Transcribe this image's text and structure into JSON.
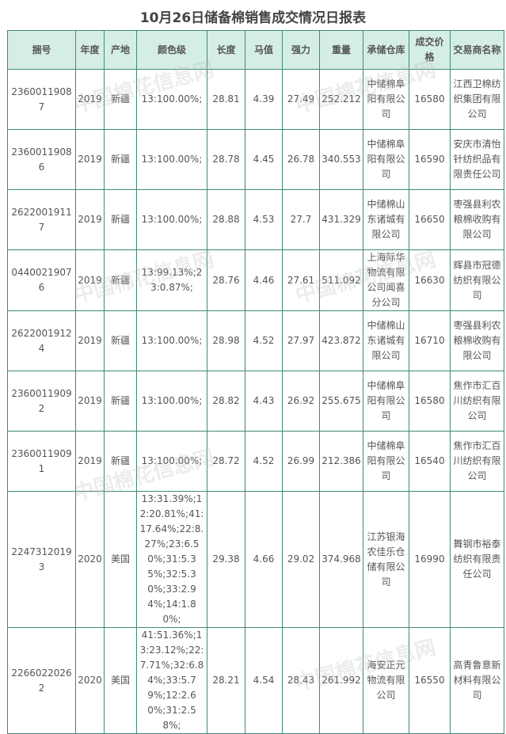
{
  "title": "10月26日储备棉销售成交情况日报表",
  "headers": [
    "捆号",
    "年度",
    "产地",
    "颜色级",
    "长度",
    "马值",
    "强力",
    "重量",
    "承储仓库",
    "成交价格",
    "交易商名称"
  ],
  "rows": [
    [
      "23600119087",
      "2019",
      "新疆",
      "13:100.00%;",
      "28.81",
      "4.39",
      "27.49",
      "252.212",
      "中储棉阜阳有限公司",
      "16580",
      "江西卫棉纺织集团有限公司"
    ],
    [
      "23600119086",
      "2019",
      "新疆",
      "13:100.00%;",
      "28.78",
      "4.45",
      "26.78",
      "340.553",
      "中储棉阜阳有限公司",
      "16590",
      "安庆市清怡针纺织品有限责任公司"
    ],
    [
      "26220019117",
      "2019",
      "新疆",
      "13:100.00%;",
      "28.88",
      "4.53",
      "27.7",
      "431.329",
      "中储棉山东诸城有限公司",
      "16650",
      "枣强县利农粮棉收购有限公司"
    ],
    [
      "04400219076",
      "2019",
      "新疆",
      "13:99.13%;23:0.87%;",
      "28.76",
      "4.46",
      "27.61",
      "511.092",
      "上海际华物流有限公司闻喜分公司",
      "16630",
      "辉县市冠德纺织有限公司"
    ],
    [
      "26220019124",
      "2019",
      "新疆",
      "13:100.00%;",
      "28.98",
      "4.52",
      "27.97",
      "423.872",
      "中储棉山东诸城有限公司",
      "16710",
      "枣强县利农粮棉收购有限公司"
    ],
    [
      "23600119092",
      "2019",
      "新疆",
      "13:100.00%;",
      "28.82",
      "4.43",
      "26.92",
      "255.675",
      "中储棉阜阳有限公司",
      "16580",
      "焦作市汇百川纺织有限公司"
    ],
    [
      "23600119091",
      "2019",
      "新疆",
      "13:100.00%;",
      "28.72",
      "4.52",
      "26.99",
      "212.386",
      "中储棉阜阳有限公司",
      "16540",
      "焦作市汇百川纺织有限公司"
    ],
    [
      "22473120193",
      "2020",
      "美国",
      "13:31.39%;12:20.81%;41:17.64%;22:8.27%;23:6.50%;31:5.35%;32:5.30%;33:2.94%;14:1.80%;",
      "29.38",
      "4.66",
      "29.02",
      "374.968",
      "江苏银海农佳乐仓储有限公司",
      "16990",
      "舞钢市裕泰纺织有限责任公司"
    ],
    [
      "22660220262",
      "2020",
      "美国",
      "41:51.36%;13:23.12%;22:7.71%;32:6.84%;33:5.79%;12:2.60%;31:2.58%;",
      "28.21",
      "4.54",
      "28.43",
      "261.992",
      "海安正元物流有限公司",
      "16550",
      "高青鲁意新材料有限公司"
    ]
  ],
  "watermark": "中国棉花信息网 www.cottonchina.org.cn"
}
